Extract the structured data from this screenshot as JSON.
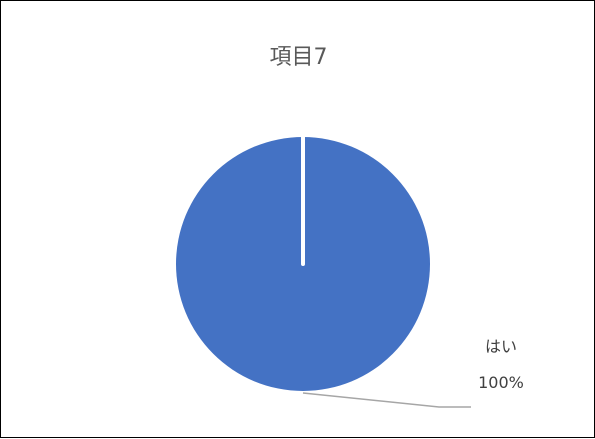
{
  "chart_data": {
    "type": "pie",
    "title": "項目7",
    "categories": [
      "はい"
    ],
    "values": [
      100
    ],
    "data_labels": [
      {
        "category": "はい",
        "percent": "100%"
      }
    ],
    "slice_color": "#4472C4",
    "separator_color": "#FFFFFF",
    "leader_line_color": "#A6A6A6",
    "legend": "none"
  }
}
